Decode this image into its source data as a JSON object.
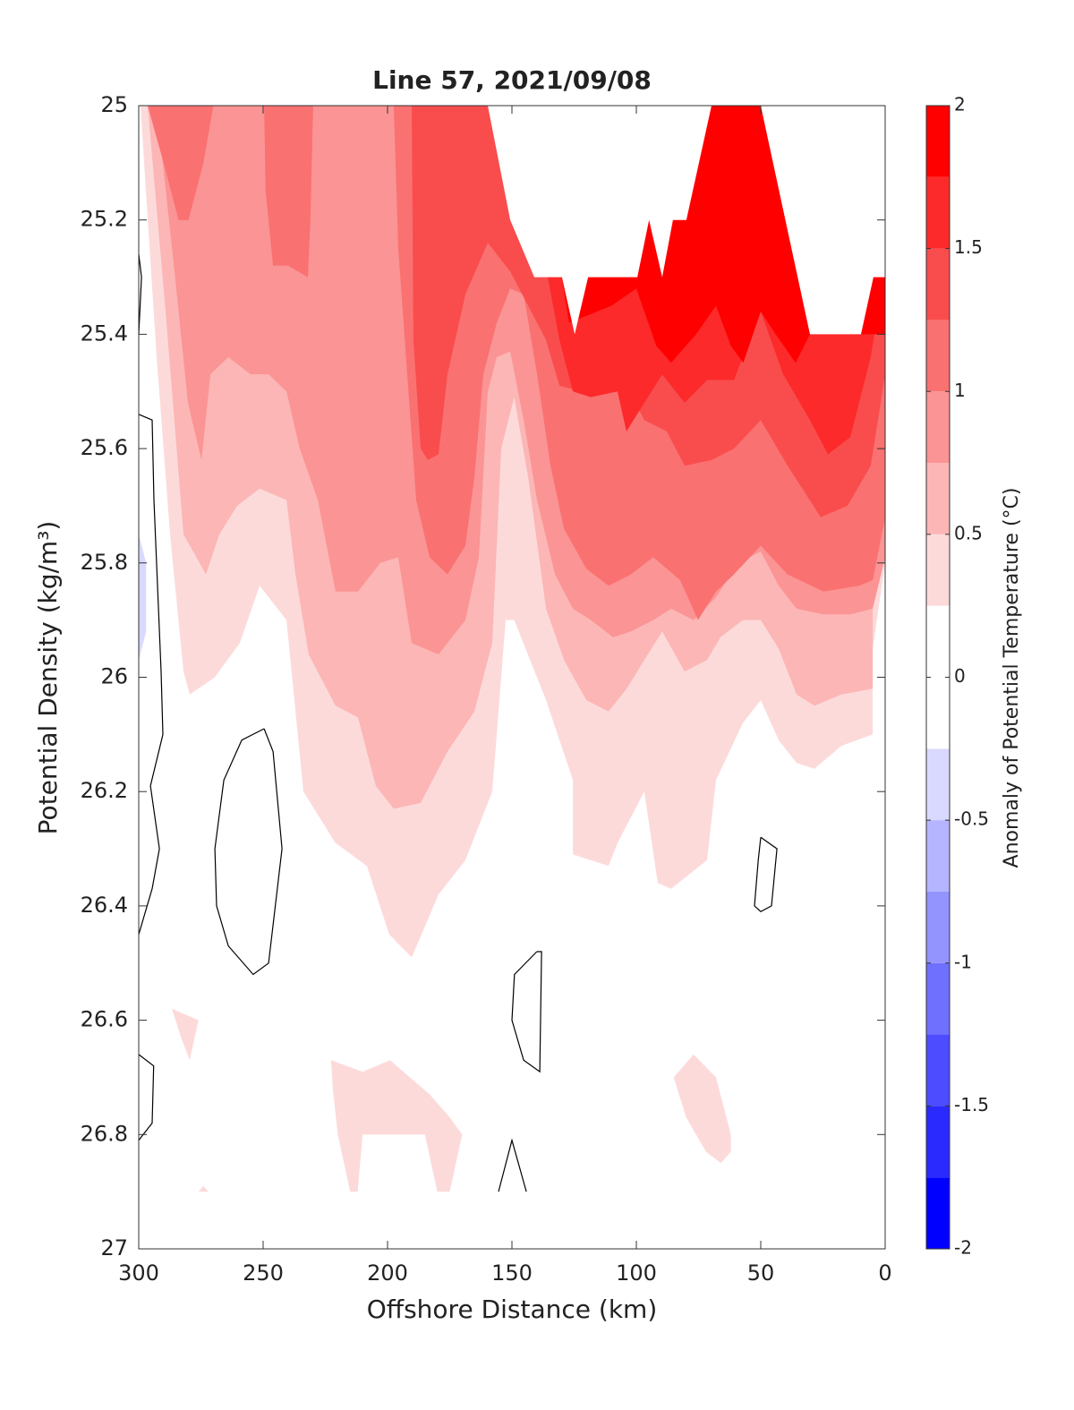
{
  "chart_data": {
    "type": "contour",
    "title": "Line 57, 2021/09/08",
    "x_label": "Offshore Distance (km)",
    "y_label": "Potential Density (kg/m³)",
    "xlim": [
      300,
      0
    ],
    "xticks": [
      300,
      250,
      200,
      150,
      100,
      50,
      0
    ],
    "ylim": [
      25,
      27
    ],
    "y_direction": "reverse",
    "yticks": [
      25,
      25.2,
      25.4,
      25.6,
      25.8,
      26,
      26.2,
      26.4,
      26.6,
      26.8,
      27
    ],
    "colorbar": {
      "label": "Anomaly of Potential Temperature (°C)",
      "levels": [
        -2,
        -1.75,
        -1.5,
        -1.25,
        -1,
        -0.75,
        -0.5,
        -0.25,
        0,
        0.25,
        0.5,
        0.75,
        1,
        1.25,
        1.5,
        1.75,
        2
      ],
      "colors": [
        "#0000ff",
        "#2a2aff",
        "#4d4dff",
        "#7070ff",
        "#9494ff",
        "#b5b5ff",
        "#d9d9ff",
        "#ffffff",
        "#ffffff",
        "#fddada",
        "#fcb6b6",
        "#fb9494",
        "#fa7171",
        "#f94d4d",
        "#fc2a2a",
        "#ff0000"
      ],
      "ticks": [
        -2,
        -1.5,
        -1,
        -0.5,
        0,
        0.5,
        1,
        1.5,
        2
      ]
    },
    "above_color": "#ffffff",
    "line_color": "#000000",
    "regions": [
      {
        "level": 0.25,
        "x": [
          299.3,
          0,
          0,
          5,
          5,
          17.6,
          28.4,
          35.6,
          42.8,
          50,
          57.2,
          68,
          71.6,
          86,
          91.4,
          96.8,
          107.6,
          111.2,
          125.5,
          125.5,
          136.3,
          149.1,
          152.5,
          157.9,
          168.7,
          179.5,
          190.3,
          199.3,
          208.3,
          220.9,
          233.8,
          240.6,
          251.4,
          259.4,
          269.4,
          279.5,
          282,
          287.4,
          292.8
        ],
        "y": [
          25,
          25,
          25.8,
          25.95,
          26.1,
          26.12,
          26.16,
          26.15,
          26.11,
          26.04,
          26.08,
          26.18,
          26.32,
          26.37,
          26.36,
          26.2,
          26.29,
          26.33,
          26.31,
          26.18,
          26.04,
          25.9,
          25.9,
          26.2,
          26.32,
          26.38,
          26.49,
          26.45,
          26.33,
          26.29,
          26.2,
          25.9,
          25.84,
          25.94,
          26,
          26.03,
          25.99,
          25.75,
          25.44
        ]
      },
      {
        "level": 0.5,
        "x": [
          296.4,
          289.2,
          282,
          273,
          267.6,
          260.4,
          251.4,
          240.6,
          237,
          231.7,
          220.9,
          211.9,
          204.7,
          197.5,
          186.7,
          175.9,
          165.1,
          157.9,
          154.3,
          149.1,
          143.5,
          136.3,
          129.1,
          120.1,
          111.2,
          103.9,
          96.8,
          89.6,
          80.6,
          71.6,
          66.2,
          57.2,
          50,
          42.8,
          35.6,
          28.4,
          17.6,
          5,
          5,
          0,
          0
        ],
        "y": [
          25,
          25.36,
          25.75,
          25.82,
          25.75,
          25.7,
          25.67,
          25.69,
          25.82,
          25.96,
          26.05,
          26.07,
          26.19,
          26.23,
          26.22,
          26.13,
          26.06,
          25.94,
          25.6,
          25.51,
          25.65,
          25.88,
          25.97,
          26.04,
          26.06,
          26.02,
          25.97,
          25.92,
          25.99,
          25.97,
          25.93,
          25.9,
          25.9,
          25.95,
          26.03,
          26.05,
          26.03,
          26.02,
          25.82,
          25.8,
          25
        ]
      },
      {
        "level": 0.75,
        "x": [
          292.8,
          285.6,
          280.2,
          274.8,
          271.2,
          264,
          255,
          247.8,
          240.6,
          235.3,
          228,
          220.9,
          211.9,
          202.9,
          195.7,
          190.3,
          179.5,
          168.7,
          163.3,
          159.7,
          156.1,
          150.7,
          145.3,
          139.9,
          132.7,
          125.5,
          118.3,
          109.4,
          102.2,
          93.2,
          86,
          77,
          68,
          59,
          50,
          42.8,
          35.6,
          24.8,
          14,
          5,
          0,
          0
        ],
        "y": [
          25,
          25.29,
          25.52,
          25.62,
          25.47,
          25.44,
          25.47,
          25.47,
          25.5,
          25.6,
          25.69,
          25.85,
          25.85,
          25.8,
          25.79,
          25.94,
          25.96,
          25.9,
          25.79,
          25.5,
          25.44,
          25.43,
          25.55,
          25.69,
          25.82,
          25.88,
          25.9,
          25.93,
          25.92,
          25.9,
          25.88,
          25.9,
          25.86,
          25.8,
          25.78,
          25.84,
          25.88,
          25.89,
          25.89,
          25.88,
          25.79,
          25
        ]
      },
      {
        "level": 1,
        "x": [
          197.5,
          195.7,
          192.1,
          188.5,
          183.1,
          175.9,
          168.7,
          165.1,
          161.5,
          156.1,
          150.7,
          145.3,
          139.9,
          134.5,
          129.1,
          120.1,
          111.2,
          102.2,
          93.2,
          82.4,
          75.2,
          68,
          60.8,
          50,
          39.2,
          24.8,
          10.4,
          5,
          0,
          0
        ],
        "y": [
          25,
          25.25,
          25.47,
          25.69,
          25.79,
          25.82,
          25.77,
          25.65,
          25.47,
          25.38,
          25.32,
          25.33,
          25.47,
          25.63,
          25.74,
          25.81,
          25.84,
          25.82,
          25.79,
          25.83,
          25.9,
          25.85,
          25.82,
          25.77,
          25.82,
          25.85,
          25.84,
          25.83,
          25.72,
          25
        ]
      },
      {
        "level": 1,
        "x": [
          296.4,
          270,
          274,
          280,
          284,
          290
        ],
        "y": [
          25,
          25,
          25.1,
          25.2,
          25.2,
          25.1
        ]
      },
      {
        "level": 1,
        "x": [
          249.6,
          229.9,
          231,
          232,
          240,
          246,
          249
        ],
        "y": [
          25,
          25,
          25.2,
          25.3,
          25.28,
          25.28,
          25.15
        ]
      },
      {
        "level": 1.25,
        "x": [
          190.3,
          189.6,
          186.7,
          183.8,
          179.5,
          175.9,
          168.7,
          159.7,
          150.7,
          136.3,
          130.9,
          121.9,
          103.9,
          96.8,
          87.8,
          80.6,
          69.8,
          60.8,
          50,
          39.2,
          25.9,
          15.1,
          5.8,
          0,
          0
        ],
        "y": [
          25,
          25.41,
          25.6,
          25.62,
          25.61,
          25.47,
          25.33,
          25.24,
          25.29,
          25.41,
          25.49,
          25.5,
          25.49,
          25.55,
          25.57,
          25.63,
          25.62,
          25.6,
          25.55,
          25.63,
          25.72,
          25.7,
          25.63,
          25.47,
          25
        ]
      },
      {
        "level": 1.5,
        "x": [
          135.6,
          135.6,
          130.9,
          125.5,
          118.3,
          107.6,
          104,
          89.6,
          80.6,
          71.6,
          60.8,
          50,
          41,
          30.2,
          23,
          14,
          5.8,
          0,
          0
        ],
        "y": [
          25,
          25.3,
          25.41,
          25.5,
          25.51,
          25.5,
          25.57,
          25.47,
          25.52,
          25.48,
          25.48,
          25.36,
          25.47,
          25.55,
          25.61,
          25.58,
          25.44,
          25.28,
          25
        ]
      },
      {
        "level": 1.75,
        "x": [
          130,
          130,
          127,
          110,
          100,
          92,
          86,
          76,
          68,
          62,
          57,
          50,
          44,
          36,
          30.2,
          0,
          0
        ],
        "y": [
          25,
          25.3,
          25.38,
          25.35,
          25.32,
          25.42,
          25.45,
          25.4,
          25.35,
          25.42,
          25.45,
          25.36,
          25.4,
          25.45,
          25.4,
          25.4,
          25
        ]
      },
      {
        "level": 2,
        "x": [
          159.7,
          150.7,
          141,
          129.9,
          124.8,
          119.4,
          99.6,
          94.9,
          89.6,
          85.3,
          79.9,
          69.8
        ],
        "y": [
          25,
          25.2,
          25.3,
          25.3,
          25.4,
          25.3,
          25.3,
          25.2,
          25.3,
          25.2,
          25.2,
          25
        ]
      },
      {
        "level": 2,
        "x": [
          50,
          30.2,
          9.7,
          4.7,
          0,
          0
        ],
        "y": [
          25,
          25.4,
          25.4,
          25.3,
          25.3,
          25
        ]
      },
      {
        "level": 0.25,
        "x": [
          286.7,
          276,
          279.5,
          283
        ],
        "y": [
          26.58,
          26.6,
          26.67,
          26.63
        ]
      },
      {
        "level": 0.25,
        "x": [
          222.7,
          210,
          199,
          183,
          175,
          170,
          175,
          180,
          185,
          210,
          212,
          215,
          220,
          222
        ],
        "y": [
          26.67,
          26.69,
          26.67,
          26.73,
          26.77,
          26.8,
          26.9,
          26.9,
          26.8,
          26.8,
          26.9,
          26.9,
          26.8,
          26.72
        ]
      },
      {
        "level": 0.25,
        "x": [
          85,
          77,
          68,
          62,
          62,
          66,
          72,
          80
        ],
        "y": [
          26.7,
          26.66,
          26.7,
          26.8,
          26.83,
          26.85,
          26.83,
          26.77
        ]
      },
      {
        "level": 0.25,
        "x": [
          276,
          272,
          274
        ],
        "y": [
          26.9,
          26.9,
          26.89
        ]
      },
      {
        "level": -0.5,
        "x": [
          300,
          297,
          297,
          300
        ],
        "y": [
          25.75,
          25.8,
          25.92,
          25.97
        ]
      }
    ],
    "lines": [
      {
        "level": 0,
        "x": [
          300,
          298.9,
          300
        ],
        "y": [
          25.26,
          25.3,
          25.4
        ]
      },
      {
        "level": 0,
        "x": [
          300,
          294.6,
          293.9,
          291,
          290.3,
          295.3,
          291.7,
          294.6,
          300
        ],
        "y": [
          25.54,
          25.55,
          25.69,
          25.99,
          26.1,
          26.19,
          26.3,
          26.37,
          26.45
        ]
      },
      {
        "level": 0,
        "x": [
          249.6,
          246,
          242.4,
          247.8,
          254,
          264,
          268.7,
          269.4,
          265.8,
          258.6,
          249.6
        ],
        "y": [
          26.09,
          26.13,
          26.3,
          26.5,
          26.52,
          26.47,
          26.4,
          26.3,
          26.18,
          26.11,
          26.09
        ]
      },
      {
        "level": 0,
        "x": [
          300,
          294,
          294.6,
          300
        ],
        "y": [
          26.66,
          26.68,
          26.78,
          26.81
        ]
      },
      {
        "level": 0,
        "x": [
          140,
          138.1,
          138.8,
          145.3,
          150,
          149,
          140
        ],
        "y": [
          26.48,
          26.48,
          26.69,
          26.67,
          26.6,
          26.52,
          26.48
        ]
      },
      {
        "level": 0,
        "x": [
          155.4,
          150,
          144.2
        ],
        "y": [
          26.9,
          26.81,
          26.9
        ]
      },
      {
        "level": 0,
        "x": [
          50,
          43.5,
          45.7,
          50,
          52.5,
          51,
          50
        ],
        "y": [
          26.28,
          26.3,
          26.4,
          26.41,
          26.4,
          26.32,
          26.28
        ]
      }
    ]
  }
}
